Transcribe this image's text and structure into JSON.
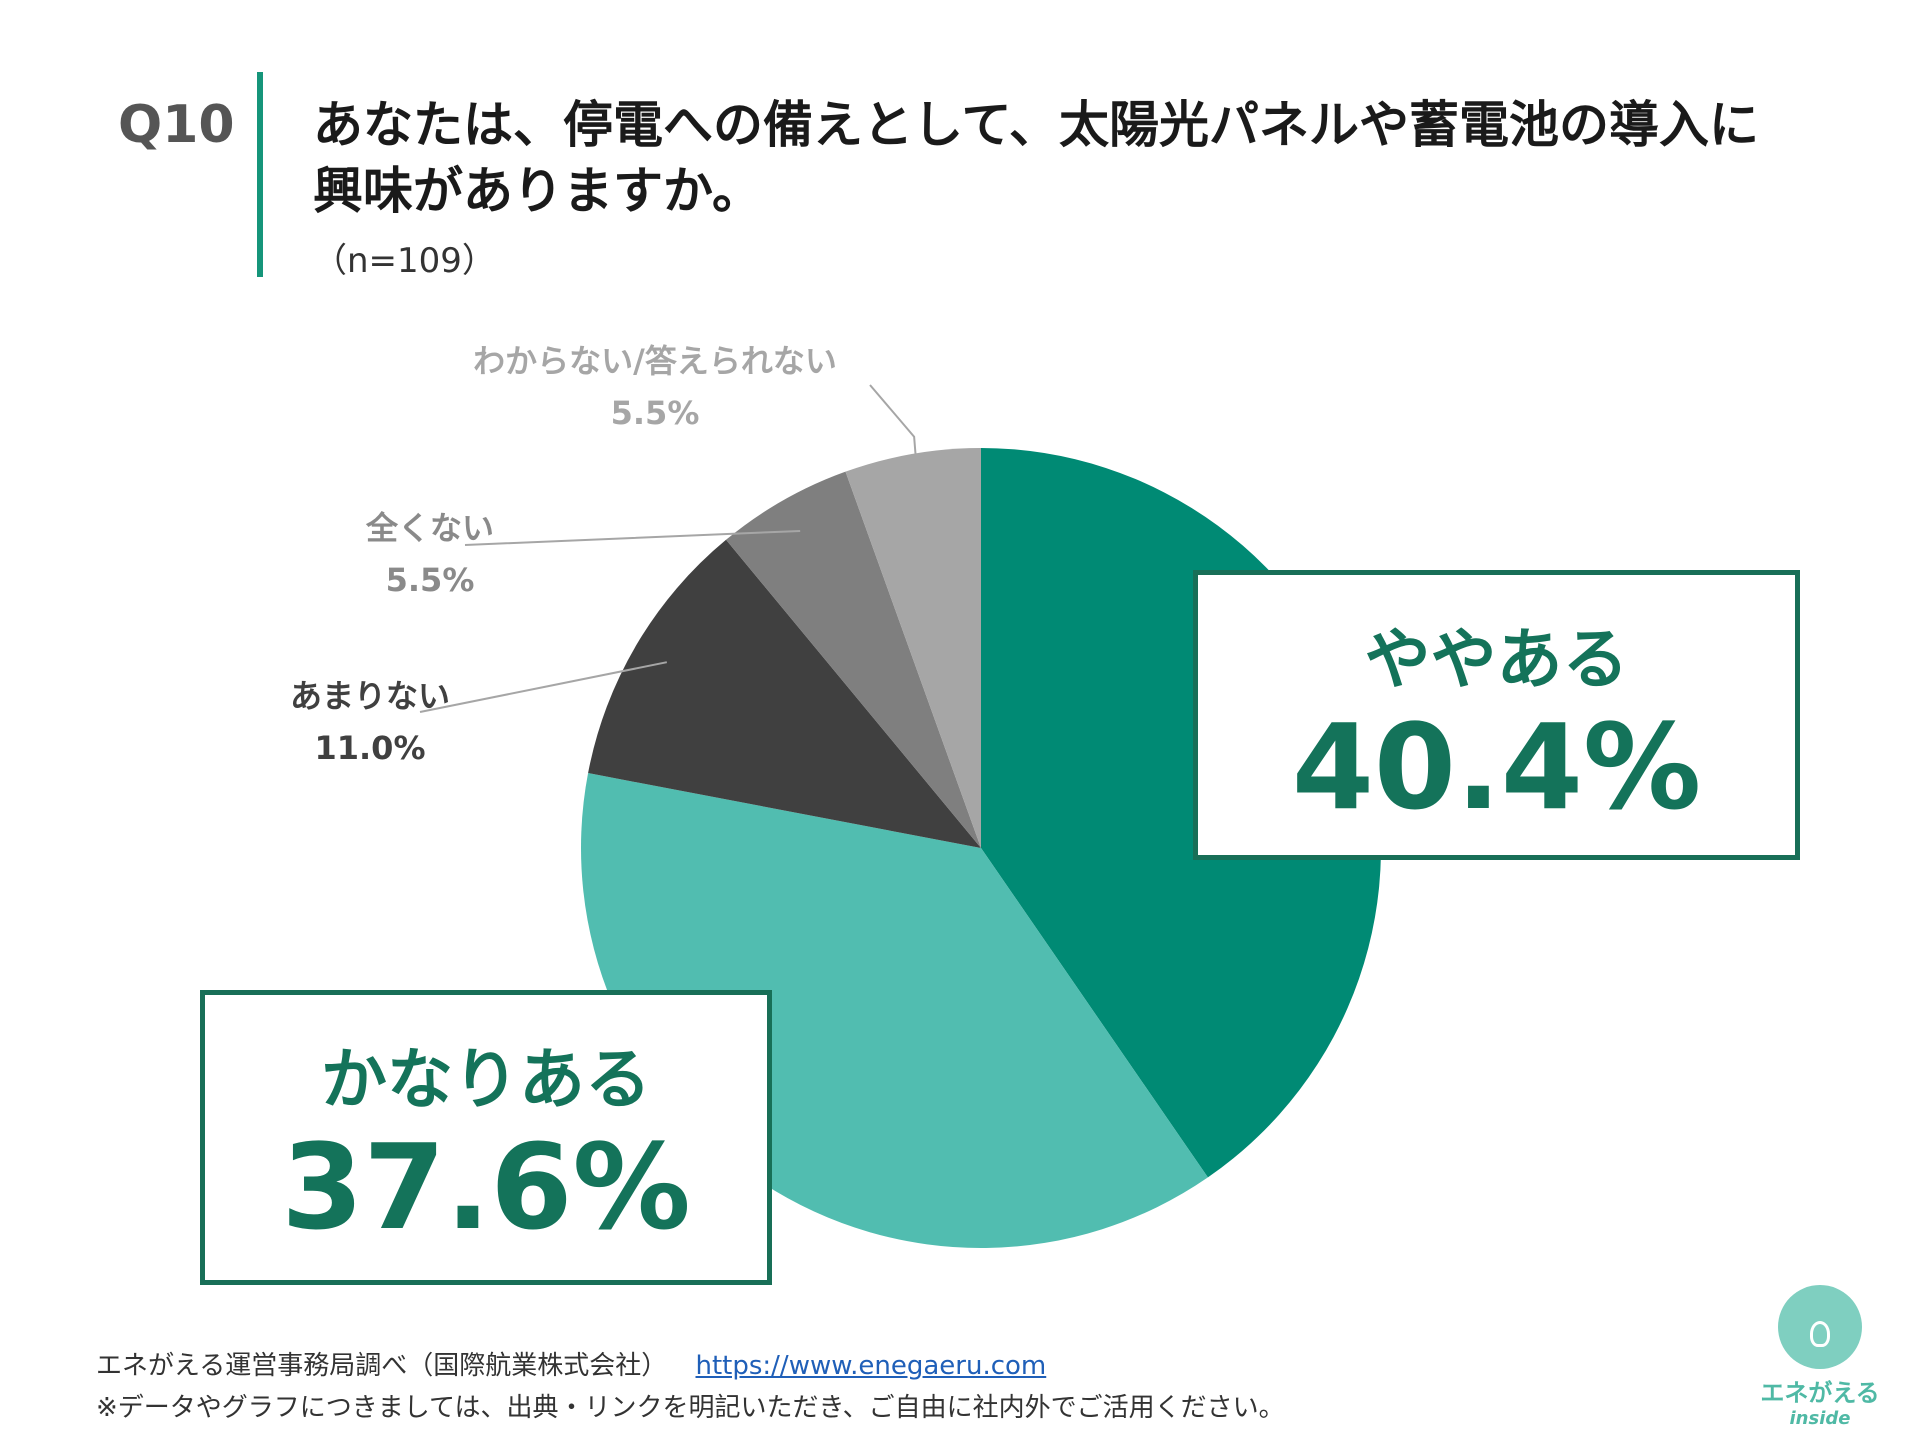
{
  "header": {
    "qnum": "Q10",
    "title_line1": "あなたは、停電への備えとして、太陽光パネルや蓄電池の導入に",
    "title_line2": "興味がありますか。",
    "n": "（n=109）"
  },
  "chart_data": {
    "type": "pie",
    "start": "12 o'clock",
    "direction": "clockwise",
    "slices": [
      {
        "label": "ややある",
        "value": 40.4,
        "display": "40.4%",
        "color": "#008a74"
      },
      {
        "label": "かなりある",
        "value": 37.6,
        "display": "37.6%",
        "color": "#51bdb0"
      },
      {
        "label": "あまりない",
        "value": 11.0,
        "display": "11.0%",
        "color": "#404040"
      },
      {
        "label": "全くない",
        "value": 5.5,
        "display": "5.5%",
        "color": "#7f7f7f"
      },
      {
        "label": "わからない/答えられない",
        "value": 5.5,
        "display": "5.5%",
        "color": "#a6a6a6"
      }
    ]
  },
  "footer": {
    "source": "エネがえる運営事務局調べ（国際航業株式会社）",
    "url": "https://www.enegaeru.com",
    "note": "※データやグラフにつきましては、出典・リンクを明記いただき、ご自由に社内外でご活用ください。"
  },
  "logo": {
    "text": "エネがえる",
    "sub": "inside"
  }
}
